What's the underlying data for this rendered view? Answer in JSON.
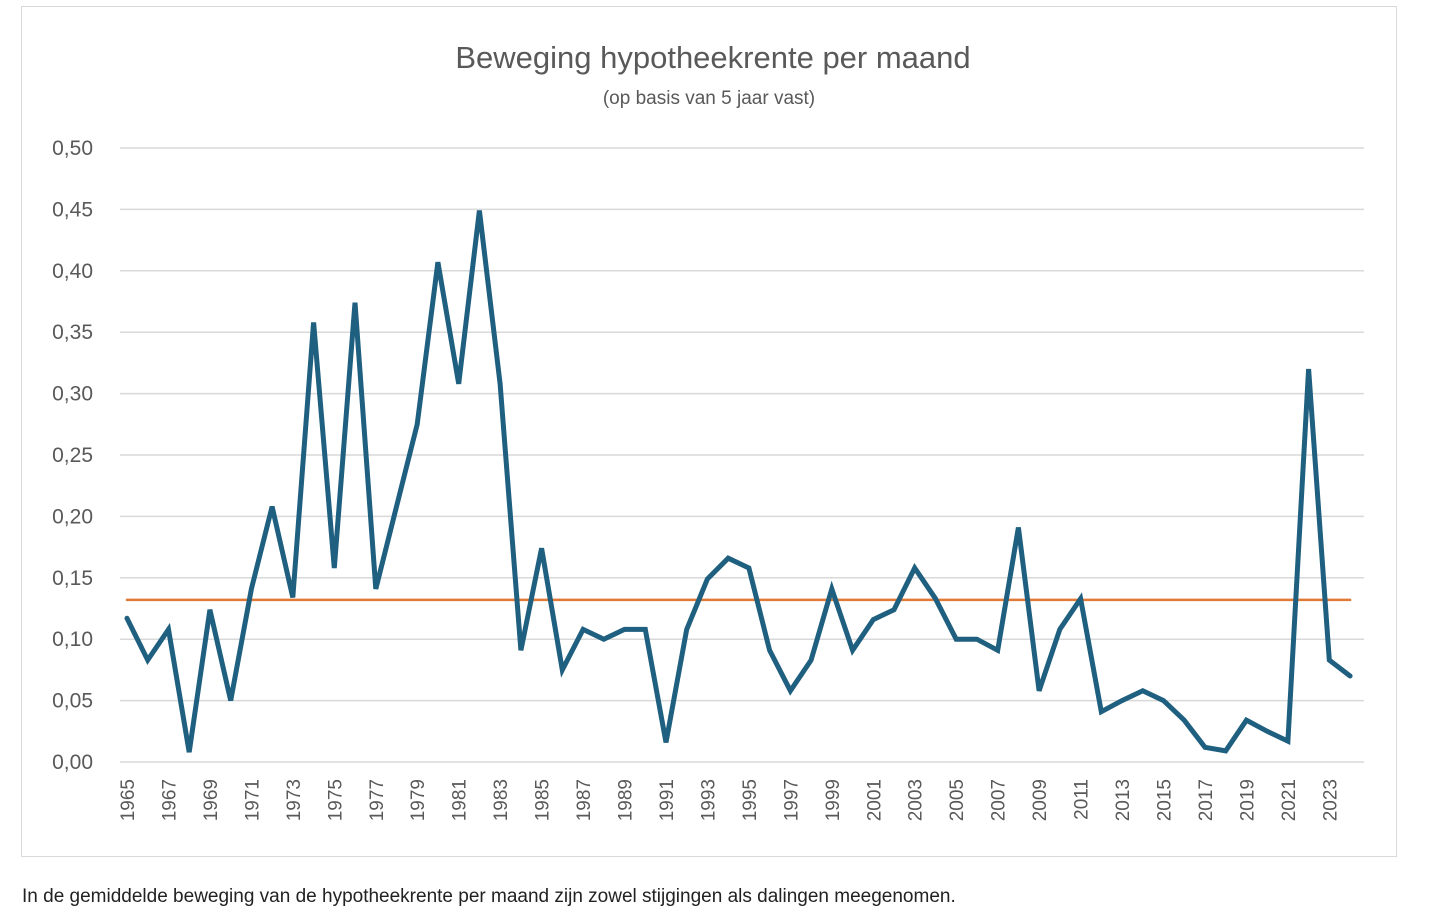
{
  "chart_data": {
    "type": "line",
    "title": "Beweging hypotheekrente per maand",
    "subtitle": "(op basis van 5 jaar vast)",
    "xlabel": "",
    "ylabel": "",
    "ylim": [
      0,
      0.5
    ],
    "yticks": [
      "0,00",
      "0,05",
      "0,10",
      "0,15",
      "0,20",
      "0,25",
      "0,30",
      "0,35",
      "0,40",
      "0,45",
      "0,50"
    ],
    "x": [
      1965,
      1966,
      1967,
      1968,
      1969,
      1970,
      1971,
      1972,
      1973,
      1974,
      1975,
      1976,
      1977,
      1978,
      1979,
      1980,
      1981,
      1982,
      1983,
      1984,
      1985,
      1986,
      1987,
      1988,
      1989,
      1990,
      1991,
      1992,
      1993,
      1994,
      1995,
      1996,
      1997,
      1998,
      1999,
      2000,
      2001,
      2002,
      2003,
      2004,
      2005,
      2006,
      2007,
      2008,
      2009,
      2010,
      2011,
      2012,
      2013,
      2014,
      2015,
      2016,
      2017,
      2018,
      2019,
      2020,
      2021,
      2022,
      2023,
      2024
    ],
    "xtick_labels": [
      "1965",
      "1967",
      "1969",
      "1971",
      "1973",
      "1975",
      "1977",
      "1979",
      "1981",
      "1983",
      "1985",
      "1987",
      "1989",
      "1991",
      "1993",
      "1995",
      "1997",
      "1999",
      "2001",
      "2003",
      "2005",
      "2007",
      "2009",
      "2011",
      "2013",
      "2015",
      "2017",
      "2019",
      "2021",
      "2023"
    ],
    "grid": true,
    "legend": "none",
    "series": [
      {
        "color": "#1f5f7f",
        "values": [
          0.117,
          0.083,
          0.108,
          0.008,
          0.124,
          0.05,
          0.141,
          0.208,
          0.134,
          0.358,
          0.158,
          0.374,
          0.141,
          0.208,
          0.275,
          0.407,
          0.308,
          0.449,
          0.308,
          0.091,
          0.174,
          0.075,
          0.108,
          0.1,
          0.108,
          0.108,
          0.016,
          0.108,
          0.149,
          0.166,
          0.158,
          0.091,
          0.058,
          0.083,
          0.141,
          0.091,
          0.116,
          0.124,
          0.158,
          0.133,
          0.1,
          0.1,
          0.091,
          0.191,
          0.058,
          0.108,
          0.133,
          0.041,
          0.05,
          0.058,
          0.05,
          0.034,
          0.012,
          0.009,
          0.034,
          0.025,
          0.017,
          0.32,
          0.083,
          0.07
        ]
      },
      {
        "color": "#e07a36",
        "values": [
          0.132,
          0.132,
          0.132,
          0.132,
          0.132,
          0.132,
          0.132,
          0.132,
          0.132,
          0.132,
          0.132,
          0.132,
          0.132,
          0.132,
          0.132,
          0.132,
          0.132,
          0.132,
          0.132,
          0.132,
          0.132,
          0.132,
          0.132,
          0.132,
          0.132,
          0.132,
          0.132,
          0.132,
          0.132,
          0.132,
          0.132,
          0.132,
          0.132,
          0.132,
          0.132,
          0.132,
          0.132,
          0.132,
          0.132,
          0.132,
          0.132,
          0.132,
          0.132,
          0.132,
          0.132,
          0.132,
          0.132,
          0.132,
          0.132,
          0.132,
          0.132,
          0.132,
          0.132,
          0.132,
          0.132,
          0.132,
          0.132,
          0.132,
          0.132,
          0.132
        ]
      }
    ]
  },
  "caption": "In de gemiddelde beweging van de hypotheekrente per maand zijn zowel stijgingen als dalingen meegenomen."
}
